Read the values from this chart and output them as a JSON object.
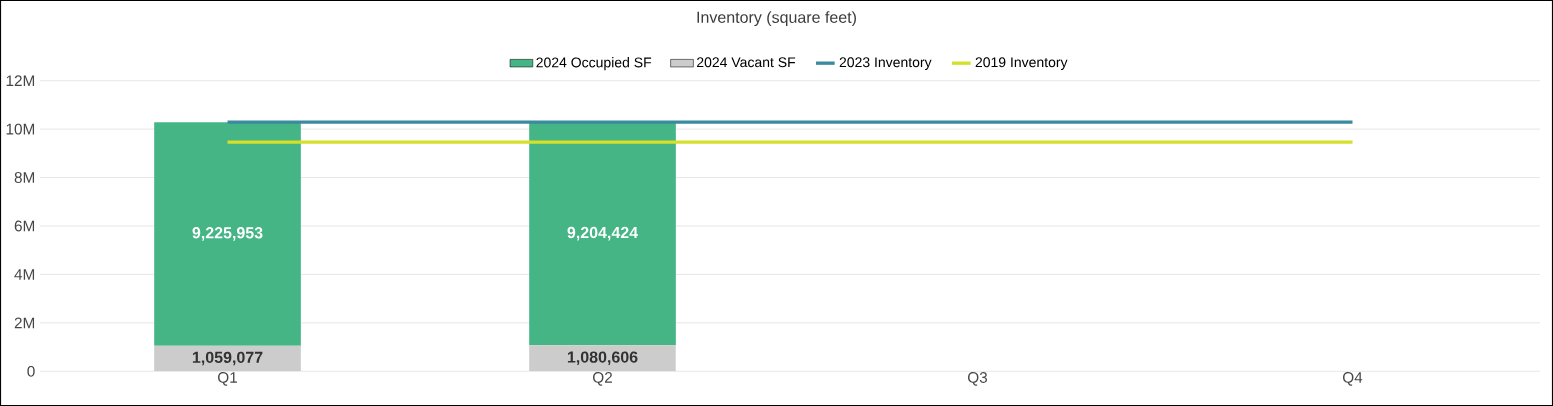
{
  "chart_data": {
    "type": "bar",
    "title": "Inventory (square feet)",
    "categories": [
      "Q1",
      "Q2",
      "Q3",
      "Q4"
    ],
    "stacked": true,
    "series": [
      {
        "name": "2024 Vacant SF",
        "color": "#cccccc",
        "values": [
          1059077,
          1080606,
          null,
          null
        ],
        "value_labels": [
          "1,059,077",
          "1,080,606",
          null,
          null
        ]
      },
      {
        "name": "2024 Occupied SF",
        "color": "#45b586",
        "values": [
          9225953,
          9204424,
          null,
          null
        ],
        "value_labels": [
          "9,225,953",
          "9,204,424",
          null,
          null
        ]
      },
      {
        "name": "2023 Inventory",
        "type": "line",
        "color": "#3a8aa0",
        "values": [
          10290000,
          10290000,
          10290000,
          10290000
        ]
      },
      {
        "name": "2019 Inventory",
        "type": "line",
        "color": "#d4e02a",
        "values": [
          9460000,
          9460000,
          9460000,
          9460000
        ]
      }
    ],
    "ylim": [
      0,
      12000000
    ],
    "yticks": [
      0,
      {
        "value": 2000000,
        "label": "2M"
      },
      {
        "value": 4000000,
        "label": "4M"
      },
      {
        "value": 6000000,
        "label": "6M"
      },
      {
        "value": 8000000,
        "label": "8M"
      },
      {
        "value": 10000000,
        "label": "10M"
      },
      {
        "value": 12000000,
        "label": "12M"
      }
    ],
    "grid": "y",
    "legend": "top"
  }
}
